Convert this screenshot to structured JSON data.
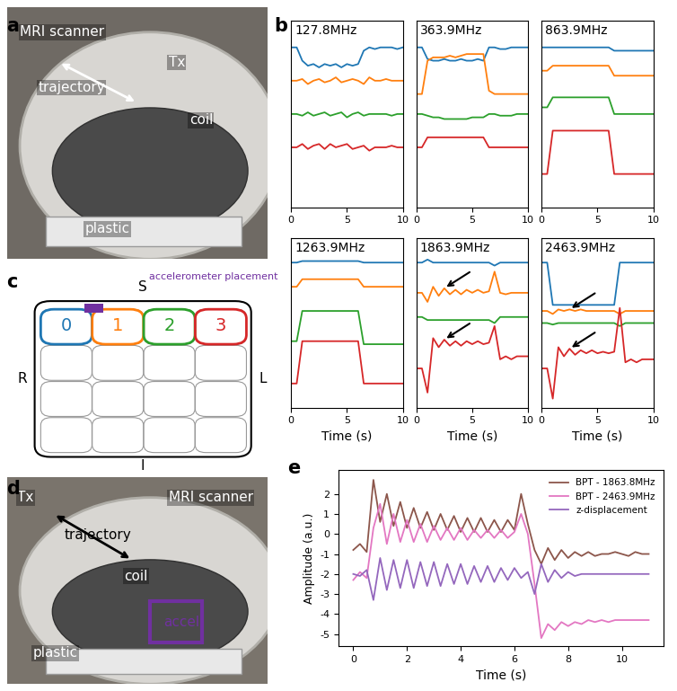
{
  "panel_labels": [
    "a",
    "b",
    "c",
    "d",
    "e"
  ],
  "photos": [
    {
      "panel": "a",
      "labels": [
        {
          "text": "MRI scanner",
          "color": "white"
        },
        {
          "text": "trajectory",
          "color": "white"
        },
        {
          "text": "Tx",
          "color": "white"
        },
        {
          "text": "coil",
          "color": "white"
        },
        {
          "text": "plastic",
          "color": "white"
        }
      ]
    },
    {
      "panel": "d",
      "labels": [
        {
          "text": "Tx",
          "color": "white"
        },
        {
          "text": "MRI scanner",
          "color": "white"
        },
        {
          "text": "trajectory",
          "color": "black"
        },
        {
          "text": "coil",
          "color": "white"
        },
        {
          "text": "accel",
          "color": "#7030a0"
        },
        {
          "text": "plastic",
          "color": "white"
        }
      ]
    }
  ],
  "diagram": {
    "panel": "c",
    "top": "S",
    "bottom": "I",
    "left": "R",
    "right": "L",
    "coils": [
      {
        "label": "0",
        "color": "#1f77b4"
      },
      {
        "label": "1",
        "color": "#ff7f0e"
      },
      {
        "label": "2",
        "color": "#2ca02c"
      },
      {
        "label": "3",
        "color": "#d62728"
      }
    ],
    "accelerometer_label": "accelerometer placement",
    "accelerometer_color": "#7030a0"
  },
  "chart_data": [
    {
      "type": "line",
      "title": "127.8MHz",
      "x": [
        0,
        0.5,
        1,
        1.5,
        2,
        2.5,
        3,
        3.5,
        4,
        4.5,
        5,
        5.5,
        6,
        6.5,
        7,
        7.5,
        8,
        8.5,
        9,
        9.5,
        10
      ],
      "xlim": [
        0,
        10
      ],
      "xticks": [
        0,
        5,
        10
      ],
      "ylim": [
        -1.8,
        3.8
      ],
      "tick_labels": "x",
      "series": [
        {
          "color": "#1f77b4",
          "values": [
            3.0,
            3.0,
            2.6,
            2.45,
            2.5,
            2.4,
            2.5,
            2.45,
            2.5,
            2.4,
            2.5,
            2.45,
            2.5,
            2.9,
            3.0,
            2.95,
            3.0,
            3.0,
            3.0,
            2.95,
            3.0
          ]
        },
        {
          "color": "#ff7f0e",
          "values": [
            2.0,
            2.0,
            2.05,
            1.9,
            2.0,
            2.05,
            1.95,
            2.0,
            2.1,
            1.95,
            2.0,
            2.05,
            2.0,
            1.9,
            2.1,
            2.0,
            2.0,
            2.05,
            2.0,
            2.0,
            2.0
          ]
        },
        {
          "color": "#2ca02c",
          "values": [
            1.0,
            1.0,
            0.95,
            1.05,
            0.95,
            1.0,
            1.05,
            0.95,
            1.0,
            1.05,
            0.9,
            1.0,
            1.05,
            0.95,
            1.0,
            1.0,
            1.0,
            1.0,
            0.95,
            1.0,
            1.0
          ]
        },
        {
          "color": "#d62728",
          "values": [
            0.0,
            0.0,
            0.1,
            -0.05,
            0.05,
            0.1,
            -0.05,
            0.1,
            0.0,
            0.05,
            0.1,
            -0.05,
            0.0,
            0.05,
            -0.1,
            0.0,
            0.0,
            0.0,
            0.05,
            0.0,
            0.0
          ]
        }
      ]
    },
    {
      "type": "line",
      "title": "363.9MHz",
      "x": [
        0,
        0.5,
        1,
        1.5,
        2,
        2.5,
        3,
        3.5,
        4,
        4.5,
        5,
        5.5,
        6,
        6.5,
        7,
        7.5,
        8,
        8.5,
        9,
        9.5,
        10
      ],
      "xlim": [
        0,
        10
      ],
      "xticks": [
        0,
        5,
        10
      ],
      "ylim": [
        -1.8,
        3.8
      ],
      "tick_labels": "x",
      "series": [
        {
          "color": "#1f77b4",
          "values": [
            3.0,
            3.0,
            2.65,
            2.6,
            2.6,
            2.65,
            2.6,
            2.6,
            2.65,
            2.6,
            2.6,
            2.65,
            2.6,
            3.0,
            3.0,
            2.95,
            2.95,
            3.0,
            3.0,
            3.0,
            3.0
          ]
        },
        {
          "color": "#ff7f0e",
          "values": [
            1.6,
            1.6,
            2.6,
            2.7,
            2.7,
            2.7,
            2.75,
            2.7,
            2.75,
            2.8,
            2.8,
            2.8,
            2.8,
            1.7,
            1.6,
            1.6,
            1.6,
            1.6,
            1.6,
            1.6,
            1.6
          ]
        },
        {
          "color": "#2ca02c",
          "values": [
            1.0,
            1.0,
            0.95,
            0.9,
            0.9,
            0.85,
            0.85,
            0.85,
            0.85,
            0.85,
            0.9,
            0.9,
            0.9,
            1.0,
            1.0,
            0.95,
            0.95,
            0.95,
            1.0,
            1.0,
            1.0
          ]
        },
        {
          "color": "#d62728",
          "values": [
            0.0,
            0.0,
            0.3,
            0.3,
            0.3,
            0.3,
            0.3,
            0.3,
            0.3,
            0.3,
            0.3,
            0.3,
            0.3,
            0.0,
            0.0,
            0.0,
            0.0,
            0.0,
            0.0,
            0.0,
            0.0
          ]
        }
      ]
    },
    {
      "type": "line",
      "title": "863.9MHz",
      "x": [
        0,
        0.5,
        1,
        1.5,
        2,
        2.5,
        3,
        3.5,
        4,
        4.5,
        5,
        5.5,
        6,
        6.5,
        7,
        7.5,
        8,
        8.5,
        9,
        9.5,
        10
      ],
      "xlim": [
        0,
        10
      ],
      "xticks": [
        0,
        5,
        10
      ],
      "ylim": [
        -1.8,
        3.8
      ],
      "tick_labels": "x",
      "series": [
        {
          "color": "#1f77b4",
          "values": [
            3.0,
            3.0,
            3.0,
            3.0,
            3.0,
            3.0,
            3.0,
            3.0,
            3.0,
            3.0,
            3.0,
            3.0,
            3.0,
            2.9,
            2.9,
            2.9,
            2.9,
            2.9,
            2.9,
            2.9,
            2.9
          ]
        },
        {
          "color": "#ff7f0e",
          "values": [
            2.3,
            2.3,
            2.45,
            2.45,
            2.45,
            2.45,
            2.45,
            2.45,
            2.45,
            2.45,
            2.45,
            2.45,
            2.45,
            2.15,
            2.15,
            2.15,
            2.15,
            2.15,
            2.15,
            2.15,
            2.15
          ]
        },
        {
          "color": "#2ca02c",
          "values": [
            1.2,
            1.2,
            1.5,
            1.5,
            1.5,
            1.5,
            1.5,
            1.5,
            1.5,
            1.5,
            1.5,
            1.5,
            1.5,
            1.0,
            1.0,
            1.0,
            1.0,
            1.0,
            1.0,
            1.0,
            1.0
          ]
        },
        {
          "color": "#d62728",
          "values": [
            -0.8,
            -0.8,
            0.5,
            0.5,
            0.5,
            0.5,
            0.5,
            0.5,
            0.5,
            0.5,
            0.5,
            0.5,
            0.5,
            -0.8,
            -0.8,
            -0.8,
            -0.8,
            -0.8,
            -0.8,
            -0.8,
            -0.8
          ]
        }
      ]
    },
    {
      "type": "line",
      "title": "1263.9MHz",
      "xlabel": "Time (s)",
      "x": [
        0,
        0.5,
        1,
        1.5,
        2,
        2.5,
        3,
        3.5,
        4,
        4.5,
        5,
        5.5,
        6,
        6.5,
        7,
        7.5,
        8,
        8.5,
        9,
        9.5,
        10
      ],
      "xlim": [
        0,
        10
      ],
      "xticks": [
        0,
        5,
        10
      ],
      "ylim": [
        -1.8,
        3.8
      ],
      "tick_labels": "x",
      "series": [
        {
          "color": "#1f77b4",
          "values": [
            3.0,
            3.0,
            3.05,
            3.05,
            3.05,
            3.05,
            3.05,
            3.05,
            3.05,
            3.05,
            3.05,
            3.05,
            3.05,
            3.0,
            3.0,
            3.0,
            3.0,
            3.0,
            3.0,
            3.0,
            3.0
          ]
        },
        {
          "color": "#ff7f0e",
          "values": [
            2.2,
            2.2,
            2.45,
            2.45,
            2.45,
            2.45,
            2.45,
            2.45,
            2.45,
            2.45,
            2.45,
            2.45,
            2.45,
            2.2,
            2.2,
            2.2,
            2.2,
            2.2,
            2.2,
            2.2,
            2.2
          ]
        },
        {
          "color": "#2ca02c",
          "values": [
            0.4,
            0.4,
            1.4,
            1.4,
            1.4,
            1.4,
            1.4,
            1.4,
            1.4,
            1.4,
            1.4,
            1.4,
            1.4,
            0.3,
            0.3,
            0.3,
            0.3,
            0.3,
            0.3,
            0.3,
            0.3
          ]
        },
        {
          "color": "#d62728",
          "values": [
            -1.0,
            -1.0,
            0.4,
            0.4,
            0.4,
            0.4,
            0.4,
            0.4,
            0.4,
            0.4,
            0.4,
            0.4,
            0.4,
            -1.0,
            -1.0,
            -1.0,
            -1.0,
            -1.0,
            -1.0,
            -1.0,
            -1.0
          ]
        }
      ]
    },
    {
      "type": "line",
      "title": "1863.9MHz",
      "xlabel": "Time (s)",
      "x": [
        0,
        0.5,
        1,
        1.5,
        2,
        2.5,
        3,
        3.5,
        4,
        4.5,
        5,
        5.5,
        6,
        6.5,
        7,
        7.5,
        8,
        8.5,
        9,
        9.5,
        10
      ],
      "xlim": [
        0,
        10
      ],
      "xticks": [
        0,
        5,
        10
      ],
      "ylim": [
        -1.8,
        3.8
      ],
      "tick_labels": "x",
      "arrows": [
        [
          2.5,
          2.15
        ],
        [
          2.5,
          0.45
        ]
      ],
      "series": [
        {
          "color": "#1f77b4",
          "values": [
            3.0,
            3.0,
            3.1,
            3.0,
            3.0,
            3.0,
            3.0,
            3.0,
            3.0,
            3.0,
            3.0,
            3.0,
            3.0,
            3.0,
            2.9,
            3.0,
            3.0,
            3.0,
            3.0,
            3.0,
            3.0
          ]
        },
        {
          "color": "#ff7f0e",
          "values": [
            2.0,
            2.0,
            1.7,
            2.2,
            1.9,
            2.15,
            1.95,
            2.1,
            1.95,
            2.1,
            2.0,
            2.1,
            2.0,
            2.05,
            2.7,
            2.0,
            1.95,
            2.0,
            2.0,
            2.0,
            2.0
          ]
        },
        {
          "color": "#2ca02c",
          "values": [
            1.2,
            1.2,
            1.1,
            1.1,
            1.1,
            1.1,
            1.1,
            1.1,
            1.1,
            1.1,
            1.1,
            1.1,
            1.1,
            1.1,
            1.0,
            1.2,
            1.2,
            1.2,
            1.2,
            1.2,
            1.2
          ]
        },
        {
          "color": "#d62728",
          "values": [
            -0.5,
            -0.5,
            -1.3,
            0.5,
            0.2,
            0.45,
            0.25,
            0.4,
            0.25,
            0.4,
            0.3,
            0.4,
            0.3,
            0.35,
            0.9,
            -0.2,
            -0.1,
            -0.2,
            -0.1,
            -0.1,
            -0.1
          ]
        }
      ]
    },
    {
      "type": "line",
      "title": "2463.9MHz",
      "xlabel": "Time (s)",
      "x": [
        0,
        0.5,
        1,
        1.5,
        2,
        2.5,
        3,
        3.5,
        4,
        4.5,
        5,
        5.5,
        6,
        6.5,
        7,
        7.5,
        8,
        8.5,
        9,
        9.5,
        10
      ],
      "xlim": [
        0,
        10
      ],
      "xticks": [
        0,
        5,
        10
      ],
      "ylim": [
        -1.8,
        3.8
      ],
      "tick_labels": "x",
      "arrows": [
        [
          2.5,
          1.45
        ],
        [
          2.5,
          0.15
        ]
      ],
      "series": [
        {
          "color": "#1f77b4",
          "values": [
            3.0,
            3.0,
            1.6,
            1.6,
            1.6,
            1.6,
            1.6,
            1.6,
            1.6,
            1.6,
            1.6,
            1.6,
            1.6,
            1.6,
            3.0,
            3.0,
            3.0,
            3.0,
            3.0,
            3.0,
            3.0
          ]
        },
        {
          "color": "#ff7f0e",
          "values": [
            1.4,
            1.4,
            1.3,
            1.45,
            1.4,
            1.45,
            1.4,
            1.45,
            1.4,
            1.4,
            1.4,
            1.4,
            1.4,
            1.4,
            1.3,
            1.4,
            1.4,
            1.4,
            1.4,
            1.4,
            1.4
          ]
        },
        {
          "color": "#2ca02c",
          "values": [
            1.0,
            1.0,
            0.95,
            1.0,
            1.0,
            1.0,
            1.0,
            1.0,
            1.0,
            1.0,
            1.0,
            1.0,
            1.0,
            1.0,
            0.9,
            1.0,
            1.0,
            1.0,
            1.0,
            1.0,
            1.0
          ]
        },
        {
          "color": "#d62728",
          "values": [
            -0.5,
            -0.5,
            -1.5,
            0.2,
            -0.1,
            0.15,
            -0.05,
            0.1,
            0.0,
            0.1,
            0.0,
            0.05,
            0.0,
            0.05,
            1.5,
            -0.3,
            -0.2,
            -0.3,
            -0.2,
            -0.2,
            -0.2
          ]
        }
      ]
    },
    {
      "type": "line",
      "xlabel": "Time (s)",
      "ylabel": "Amplitude (a.u.)",
      "legend": "upper right",
      "x": [
        0,
        0.25,
        0.5,
        0.75,
        1,
        1.25,
        1.5,
        1.75,
        2,
        2.25,
        2.5,
        2.75,
        3,
        3.25,
        3.5,
        3.75,
        4,
        4.25,
        4.5,
        4.75,
        5,
        5.25,
        5.5,
        5.75,
        6,
        6.25,
        6.5,
        6.75,
        7,
        7.25,
        7.5,
        7.75,
        8,
        8.25,
        8.5,
        8.75,
        9,
        9.25,
        9.5,
        9.75,
        10,
        10.25,
        10.5,
        10.75,
        11
      ],
      "xlim": [
        -0.55,
        11.55
      ],
      "xticks": [
        0,
        2,
        4,
        6,
        8,
        10
      ],
      "ylim": [
        -5.6,
        3.2
      ],
      "yticks": [
        -5,
        -4,
        -3,
        -2,
        -1,
        0,
        1,
        2
      ],
      "series": [
        {
          "name": "BPT - 1863.8MHz",
          "color": "#8c564b",
          "values": [
            -0.8,
            -0.5,
            -0.9,
            2.7,
            0.6,
            2.0,
            0.4,
            1.6,
            0.3,
            1.3,
            0.3,
            1.1,
            0.2,
            1.0,
            0.2,
            0.9,
            0.1,
            0.8,
            0.1,
            0.8,
            0.1,
            0.7,
            0.1,
            0.7,
            0.2,
            2.0,
            0.5,
            -0.8,
            -1.5,
            -0.7,
            -1.3,
            -0.8,
            -1.2,
            -0.9,
            -1.1,
            -0.9,
            -1.1,
            -1.0,
            -1.0,
            -0.9,
            -1.0,
            -1.1,
            -0.9,
            -1.0,
            -1.0
          ]
        },
        {
          "name": "BPT - 2463.9MHz",
          "color": "#e377c2",
          "values": [
            -2.3,
            -1.9,
            -2.2,
            0.3,
            1.5,
            -0.5,
            1.0,
            -0.4,
            0.7,
            -0.4,
            0.5,
            -0.4,
            0.4,
            -0.3,
            0.3,
            -0.3,
            0.3,
            -0.3,
            0.2,
            -0.2,
            0.2,
            -0.2,
            0.2,
            -0.2,
            0.1,
            1.0,
            0.0,
            -2.5,
            -5.2,
            -4.5,
            -4.8,
            -4.4,
            -4.6,
            -4.4,
            -4.5,
            -4.3,
            -4.4,
            -4.3,
            -4.4,
            -4.3,
            -4.3,
            -4.3,
            -4.3,
            -4.3,
            -4.3
          ]
        },
        {
          "name": "z-displacement",
          "color": "#9467bd",
          "values": [
            -2.0,
            -2.1,
            -1.8,
            -3.3,
            -1.2,
            -2.8,
            -1.3,
            -2.7,
            -1.3,
            -2.7,
            -1.4,
            -2.6,
            -1.4,
            -2.6,
            -1.5,
            -2.5,
            -1.5,
            -2.5,
            -1.6,
            -2.4,
            -1.6,
            -2.4,
            -1.7,
            -2.3,
            -1.7,
            -2.2,
            -1.9,
            -3.0,
            -1.5,
            -2.4,
            -1.8,
            -2.2,
            -1.9,
            -2.1,
            -2.0,
            -2.0,
            -2.0,
            -2.0,
            -2.0,
            -2.0,
            -2.0,
            -2.0,
            -2.0,
            -2.0,
            -2.0
          ]
        }
      ]
    }
  ]
}
